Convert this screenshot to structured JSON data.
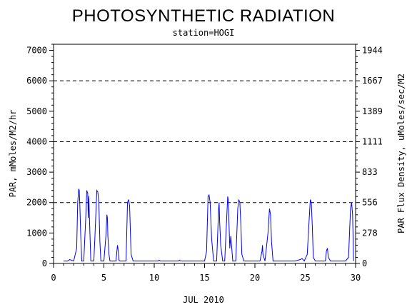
{
  "chart_data": {
    "type": "line",
    "title": "PHOTOSYNTHETIC RADIATION",
    "subtitle": "station=HOGI",
    "xlabel": "JUL 2010",
    "ylabel": "PAR, mMoles/M2/hr",
    "y2label": "PAR Flux Density, uMoles/sec/M2",
    "xlim": [
      0,
      30
    ],
    "ylim": [
      0,
      7200
    ],
    "x_ticks": [
      "0",
      "5",
      "10",
      "15",
      "20",
      "25",
      "30"
    ],
    "y_ticks": [
      "0",
      "1000",
      "2000",
      "3000",
      "4000",
      "5000",
      "6000",
      "7000"
    ],
    "y2_ticks": [
      "0",
      "278",
      "556",
      "833",
      "1111",
      "1389",
      "1667",
      "1944"
    ],
    "gridlines_y": [
      2000,
      4000,
      6000
    ],
    "grid_style": "dashed horizontal",
    "line_color": "#0000ff",
    "series": [
      {
        "x": [
          1.0,
          1.4,
          1.6,
          2.0,
          2.3,
          2.4,
          2.5,
          2.55,
          2.6,
          2.7,
          2.8,
          3.0,
          3.2,
          3.3,
          3.4,
          3.45,
          3.5,
          3.6,
          3.7,
          3.85,
          4.0,
          4.1,
          4.3,
          4.4,
          4.5,
          4.6,
          4.7,
          4.8,
          5.0,
          5.2,
          5.3,
          5.35,
          5.4,
          5.5,
          5.6,
          5.8,
          6.2,
          6.35,
          6.4,
          6.5,
          6.6,
          7.0,
          7.2,
          7.35,
          7.45,
          7.55,
          7.7,
          7.9,
          8.2,
          9.5,
          10.4,
          10.5,
          10.6,
          11.5,
          12.4,
          12.5,
          12.6,
          13.5,
          14.5,
          15.0,
          15.2,
          15.35,
          15.45,
          15.55,
          15.7,
          15.9,
          16.2,
          16.4,
          16.45,
          16.5,
          16.6,
          16.8,
          17.0,
          17.2,
          17.3,
          17.35,
          17.4,
          17.5,
          17.6,
          17.8,
          18.1,
          18.3,
          18.4,
          18.5,
          18.6,
          18.7,
          18.9,
          19.5,
          20.5,
          20.7,
          20.75,
          20.8,
          21.0,
          21.3,
          21.45,
          21.55,
          21.65,
          21.8,
          22.0,
          23.0,
          24.0,
          24.5,
          24.7,
          24.9,
          25.2,
          25.4,
          25.5,
          25.6,
          25.7,
          25.8,
          26.0,
          26.5,
          27.0,
          27.1,
          27.2,
          27.3,
          27.5,
          28.0,
          29.0,
          29.3,
          29.5,
          29.6,
          29.7,
          29.8
        ],
        "y": [
          80,
          80,
          130,
          80,
          500,
          2000,
          2450,
          2400,
          2000,
          900,
          80,
          80,
          1500,
          2400,
          2300,
          1500,
          2200,
          1100,
          80,
          80,
          80,
          800,
          2400,
          2350,
          2000,
          700,
          80,
          80,
          80,
          900,
          1600,
          1500,
          900,
          300,
          80,
          80,
          80,
          600,
          500,
          100,
          80,
          80,
          80,
          2000,
          2100,
          1900,
          300,
          80,
          80,
          80,
          80,
          110,
          80,
          80,
          80,
          110,
          80,
          80,
          80,
          80,
          400,
          2200,
          2250,
          2000,
          800,
          80,
          80,
          1800,
          2000,
          1400,
          600,
          80,
          80,
          1500,
          2200,
          2100,
          1600,
          500,
          900,
          80,
          80,
          1800,
          2100,
          2000,
          1300,
          300,
          80,
          80,
          80,
          400,
          600,
          300,
          80,
          1000,
          1800,
          1600,
          700,
          80,
          80,
          80,
          80,
          130,
          160,
          80,
          300,
          1500,
          2100,
          2000,
          1200,
          200,
          80,
          80,
          80,
          400,
          500,
          200,
          80,
          80,
          80,
          200,
          1800,
          2000,
          1600,
          80
        ]
      }
    ]
  }
}
